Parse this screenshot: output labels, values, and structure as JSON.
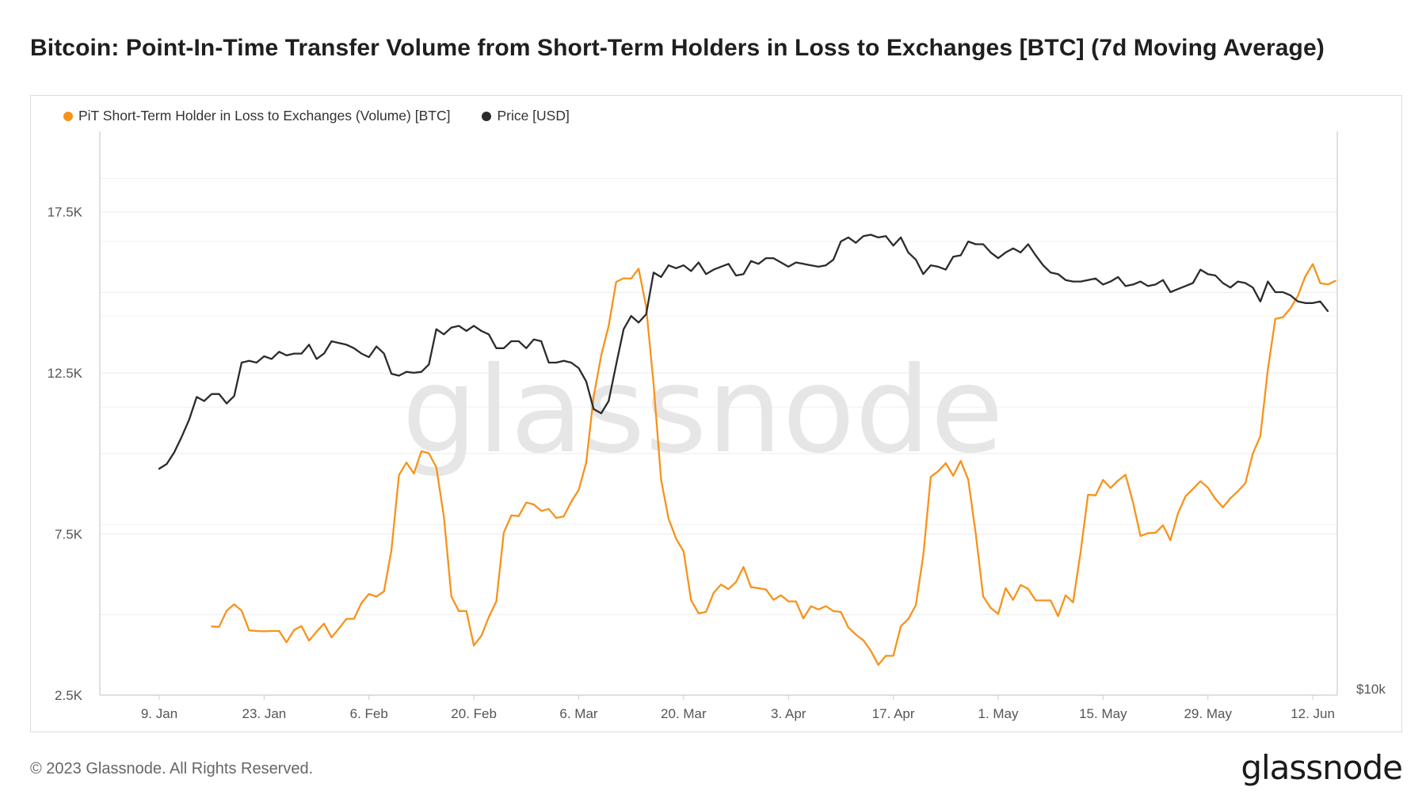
{
  "header": {
    "title": "Bitcoin: Point-In-Time Transfer Volume from Short-Term Holders in Loss to Exchanges [BTC] (7d Moving Average)"
  },
  "footer": {
    "copyright": "© 2023 Glassnode. All Rights Reserved.",
    "logo_text": "glassnode"
  },
  "colors": {
    "volume": "#f7931a",
    "price": "#2b2b2b",
    "grid": "#ececec",
    "axis": "#cccccc"
  },
  "chart_data": {
    "type": "line",
    "title": "Bitcoin: Point-In-Time Transfer Volume from Short-Term Holders in Loss to Exchanges [BTC] (7d Moving Average)",
    "watermark": "glassnode",
    "legend_position": "top-left",
    "grid": true,
    "x_axis": {
      "ticks": [
        "9. Jan",
        "23. Jan",
        "6. Feb",
        "20. Feb",
        "6. Mar",
        "20. Mar",
        "3. Apr",
        "17. Apr",
        "1. May",
        "15. May",
        "29. May",
        "12. Jun"
      ],
      "start_date": "2023-01-09",
      "end_date": "2023-06-14"
    },
    "y_left": {
      "ticks": [
        "2.5K",
        "7.5K",
        "12.5K",
        "17.5K"
      ],
      "range": [
        2500,
        20000
      ]
    },
    "y_right": {
      "ticks": [
        "$10k"
      ],
      "scale": "log"
    },
    "series": [
      {
        "name": "PiT Short-Term Holder in Loss to Exchanges (Volume) [BTC]",
        "axis": "left",
        "start_date": "2023-01-16",
        "values": [
          4630,
          4620,
          5120,
          5320,
          5120,
          4510,
          4490,
          4480,
          4490,
          4490,
          4140,
          4520,
          4640,
          4190,
          4470,
          4720,
          4290,
          4570,
          4870,
          4870,
          5360,
          5640,
          5560,
          5720,
          7000,
          9330,
          9720,
          9380,
          10070,
          10010,
          9570,
          8040,
          5560,
          5110,
          5110,
          4040,
          4340,
          4920,
          5410,
          7540,
          8080,
          8060,
          8480,
          8420,
          8220,
          8280,
          8000,
          8050,
          8500,
          8870,
          9710,
          11770,
          13050,
          13960,
          15330,
          15440,
          15430,
          15740,
          14560,
          12160,
          9180,
          7980,
          7360,
          6960,
          5450,
          5040,
          5080,
          5670,
          5930,
          5790,
          6010,
          6480,
          5850,
          5820,
          5780,
          5460,
          5600,
          5410,
          5410,
          4880,
          5260,
          5160,
          5260,
          5110,
          5080,
          4600,
          4380,
          4200,
          3880,
          3440,
          3720,
          3720,
          4640,
          4860,
          5290,
          6830,
          9280,
          9450,
          9700,
          9310,
          9770,
          9190,
          7520,
          5560,
          5210,
          5020,
          5820,
          5460,
          5920,
          5800,
          5440,
          5440,
          5440,
          4950,
          5600,
          5380,
          6940,
          8720,
          8700,
          9180,
          8930,
          9160,
          9340,
          8480,
          7440,
          7530,
          7540,
          7770,
          7310,
          8140,
          8670,
          8900,
          9140,
          8940,
          8590,
          8330,
          8610,
          8830,
          9080,
          10000,
          10540,
          12610,
          14180,
          14230,
          14500,
          14890,
          15500,
          15880,
          15290,
          15250,
          15360
        ]
      },
      {
        "name": "Price [USD]",
        "axis": "right",
        "start_date": "2023-01-09",
        "values": [
          17200,
          17400,
          17900,
          18600,
          19400,
          20500,
          20300,
          20650,
          20650,
          20180,
          20550,
          22300,
          22400,
          22300,
          22650,
          22500,
          22900,
          22700,
          22800,
          22800,
          23300,
          22500,
          22800,
          23500,
          23400,
          23300,
          23100,
          22800,
          22600,
          23200,
          22800,
          21700,
          21600,
          21800,
          21750,
          21800,
          22200,
          24200,
          23900,
          24300,
          24400,
          24100,
          24400,
          24100,
          23900,
          23100,
          23100,
          23500,
          23500,
          23100,
          23600,
          23500,
          22300,
          22300,
          22400,
          22300,
          22000,
          21300,
          19900,
          19700,
          20300,
          22200,
          24200,
          25000,
          24600,
          25100,
          27800,
          27500,
          28300,
          28100,
          28300,
          27900,
          28500,
          27700,
          28000,
          28200,
          28400,
          27600,
          27700,
          28600,
          28400,
          28800,
          28800,
          28500,
          28200,
          28500,
          28400,
          28300,
          28200,
          28300,
          28700,
          30000,
          30300,
          29900,
          30400,
          30500,
          30300,
          30400,
          29700,
          30300,
          29200,
          28700,
          27700,
          28300,
          28200,
          28000,
          28900,
          29000,
          30000,
          29800,
          29800,
          29200,
          28800,
          29200,
          29500,
          29200,
          29800,
          29000,
          28300,
          27800,
          27700,
          27300,
          27200,
          27200,
          27300,
          27400,
          27000,
          27200,
          27500,
          26900,
          27000,
          27200,
          26900,
          27000,
          27300,
          26500,
          26700,
          26900,
          27100,
          28000,
          27700,
          27600,
          27100,
          26800,
          27200,
          27100,
          26800,
          25900,
          27200,
          26500,
          26500,
          26300,
          25900,
          25800,
          25800,
          25900,
          25300
        ]
      }
    ]
  }
}
